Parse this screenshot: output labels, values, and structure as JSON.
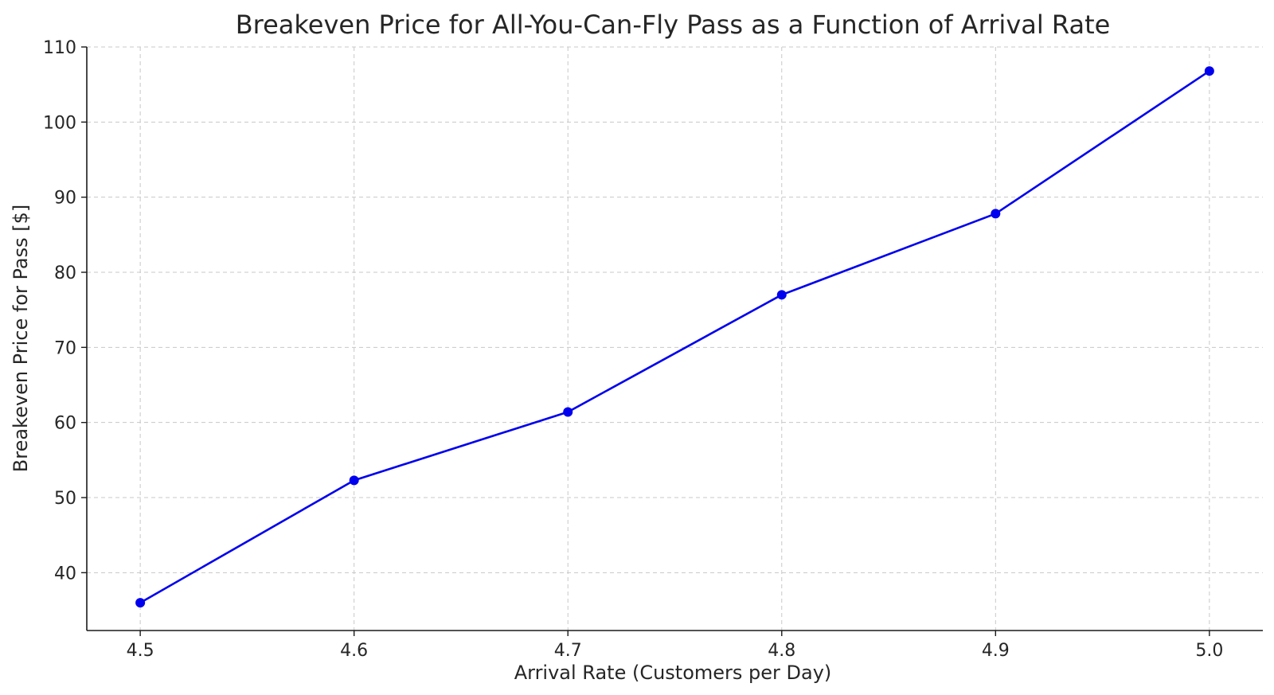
{
  "chart_data": {
    "type": "line",
    "title": "Breakeven Price for All-You-Can-Fly Pass as a Function of Arrival Rate",
    "xlabel": "Arrival Rate (Customers per Day)",
    "ylabel": "Breakeven Price for Pass [$]",
    "x": [
      4.5,
      4.6,
      4.7,
      4.8,
      4.9,
      5.0
    ],
    "series": [
      {
        "values": [
          36.0,
          52.3,
          61.4,
          77.0,
          87.8,
          106.8
        ]
      }
    ],
    "xlim": [
      4.475,
      5.025
    ],
    "ylim": [
      32.3,
      110
    ],
    "xticks": [
      4.5,
      4.6,
      4.7,
      4.8,
      4.9,
      5.0
    ],
    "xtick_labels": [
      "4.5",
      "4.6",
      "4.7",
      "4.8",
      "4.9",
      "5.0"
    ],
    "yticks": [
      40,
      50,
      60,
      70,
      80,
      90,
      100,
      110
    ],
    "ytick_labels": [
      "40",
      "50",
      "60",
      "70",
      "80",
      "90",
      "100",
      "110"
    ],
    "grid": true,
    "legend": "none",
    "line_color": "#0000ee",
    "marker": "circle"
  }
}
